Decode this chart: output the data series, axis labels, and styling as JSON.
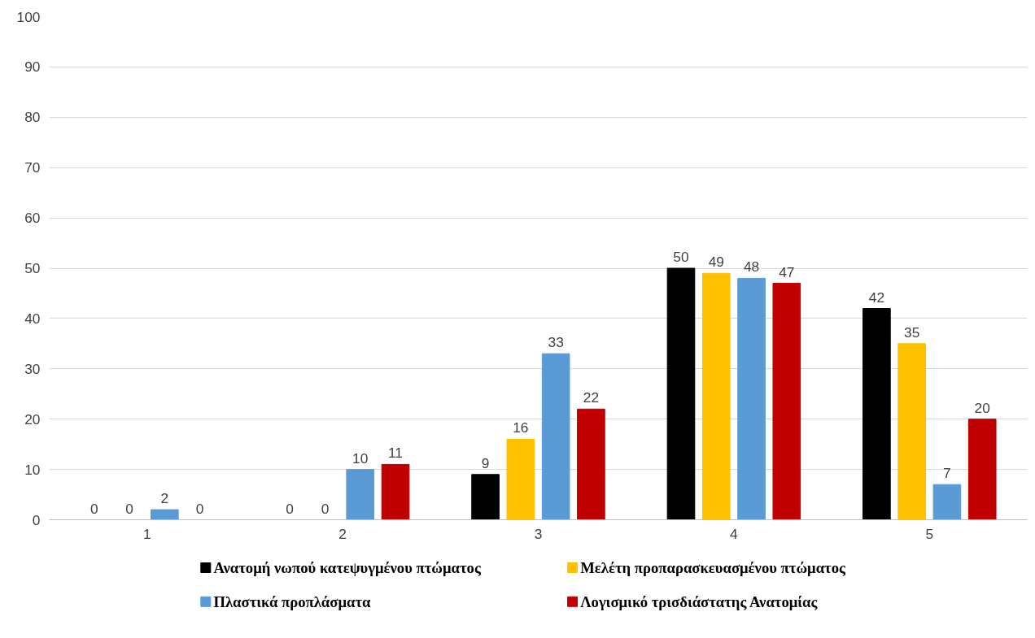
{
  "chart_data": {
    "type": "bar",
    "categories": [
      "1",
      "2",
      "3",
      "4",
      "5"
    ],
    "series": [
      {
        "name": "Ανατομή νωπού κατεψυγμένου πτώματος",
        "color": "#000000",
        "values": [
          0,
          0,
          9,
          50,
          42
        ]
      },
      {
        "name": "Μελέτη προπαρασκευασμένου πτώματος",
        "color": "#ffc000",
        "values": [
          0,
          0,
          16,
          49,
          35
        ]
      },
      {
        "name": "Πλαστικά προπλάσματα",
        "color": "#5b9bd5",
        "values": [
          2,
          10,
          33,
          48,
          7
        ]
      },
      {
        "name": "Λογισμικό τρισδιάστατης Ανατομίας",
        "color": "#c00000",
        "values": [
          0,
          11,
          22,
          47,
          20
        ]
      }
    ],
    "ylim": [
      0,
      100
    ],
    "yticks": [
      0,
      10,
      20,
      30,
      40,
      50,
      60,
      70,
      80,
      90,
      100
    ],
    "grid": "y",
    "legend": "bottom",
    "data_labels": true
  }
}
